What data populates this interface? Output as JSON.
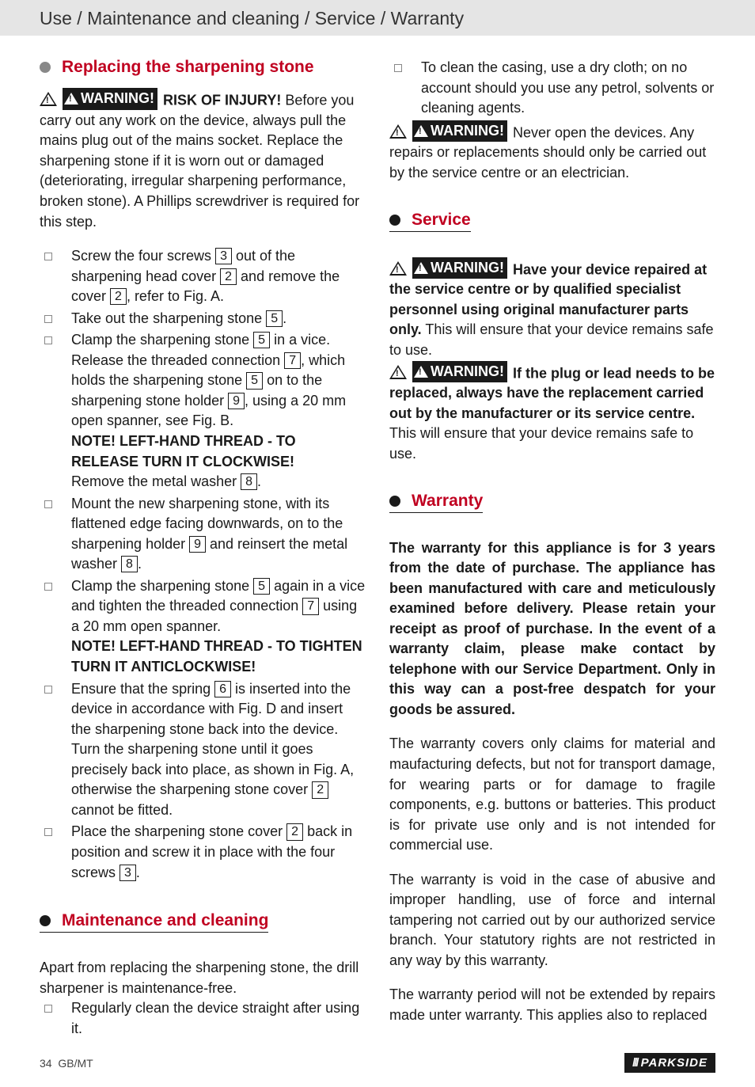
{
  "header": "Use / Maintenance and cleaning / Service / Warranty",
  "colors": {
    "accent": "#c00020",
    "text": "#1a1a1a",
    "header_bg": "#e5e5e5",
    "bullet_gray": "#888"
  },
  "left": {
    "replacing": {
      "title": "Replacing the sharpening stone",
      "intro_warning": "WARNING!",
      "intro_bold": " RISK OF INJURY!",
      "intro_rest": " Before you carry out any work on the device, always pull the mains plug out of the mains socket. Replace the sharpening stone if it is worn out or damaged (deteriorating, irregular sharpening performance, broken stone). A Phillips screwdriver is required for this step.",
      "steps": {
        "s1a": "Screw the four screws ",
        "s1_ref1": "3",
        "s1b": " out of the sharpening head cover ",
        "s1_ref2": "2",
        "s1c": " and remove the cover ",
        "s1_ref3": "2",
        "s1d": ", refer to Fig. A.",
        "s2a": "Take out the sharpening stone ",
        "s2_ref1": "5",
        "s2b": ".",
        "s3a": "Clamp the sharpening stone ",
        "s3_ref1": "5",
        "s3b": " in a vice. Release the threaded connection ",
        "s3_ref2": "7",
        "s3c": ", which holds the sharpening stone ",
        "s3_ref3": "5",
        "s3d": " on to the sharpening stone holder ",
        "s3_ref4": "9",
        "s3e": ", using a 20 mm open spanner, see Fig. B.",
        "note1": "NOTE! LEFT-HAND THREAD - TO RELEASE TURN IT CLOCKWISE!",
        "s3f": "Remove the metal washer ",
        "s3_ref5": "8",
        "s3g": ".",
        "s4a": "Mount the new sharpening stone, with its flattened edge facing downwards, on to the sharpening holder ",
        "s4_ref1": "9",
        "s4b": " and reinsert the metal washer ",
        "s4_ref2": "8",
        "s4c": ".",
        "s5a": "Clamp the sharpening stone ",
        "s5_ref1": "5",
        "s5b": " again in a vice and tighten the threaded connection ",
        "s5_ref2": "7",
        "s5c": " using a 20 mm open spanner.",
        "note2": "NOTE! LEFT-HAND THREAD - TO TIGHTEN TURN IT ANTICLOCKWISE!",
        "s6a": "Ensure that the spring ",
        "s6_ref1": "6",
        "s6b": " is inserted into the device in accordance with Fig. D and insert the sharpening stone back into the device. Turn the sharpening stone until it goes precisely back into place, as shown in Fig. A, otherwise the sharpening stone cover ",
        "s6_ref2": "2",
        "s6c": " cannot be fitted.",
        "s7a": "Place the sharpening stone cover ",
        "s7_ref1": "2",
        "s7b": " back in position and screw it in place with the four screws ",
        "s7_ref2": "3",
        "s7c": "."
      }
    },
    "maintenance": {
      "title": "Maintenance and cleaning",
      "intro": "Apart from replacing the sharpening stone, the drill sharpener is maintenance-free.",
      "item1": "Regularly clean the device straight after using it."
    }
  },
  "right": {
    "cont": {
      "item1": "To clean the casing, use a dry cloth; on no account should you use any petrol, solvents or cleaning agents.",
      "warn_label": "WARNING!",
      "warn_text": " Never open the devices. Any repairs or replacements should only be carried out by the service centre or an electrician."
    },
    "service": {
      "title": "Service",
      "w1_label": "WARNING!",
      "w1_bold": " Have your device repaired at the service centre or by qualified specialist personnel using original manufacturer parts only.",
      "w1_rest": " This will ensure that your device remains safe to use.",
      "w2_label": "WARNING!",
      "w2_bold": " If the plug or lead needs to be replaced, always have the replacement carried out by the manufacturer or its service centre.",
      "w2_rest": " This will ensure that your device remains safe to use."
    },
    "warranty": {
      "title": "Warranty",
      "p1": "The warranty for this appliance is for 3 years from the date of purchase. The appliance has been manufactured with care and meticulously examined before delivery. Please retain your receipt as proof of purchase. In the event of a warranty claim, please make contact by telephone with our Service Department. Only in this way can a post-free despatch for your goods be assured.",
      "p2": "The warranty covers only claims for material and maufacturing defects, but not for transport damage, for wearing parts or for damage to fragile components, e.g. buttons or batteries. This product is for private use only and is not intended for commercial use.",
      "p3": "The warranty is void in the case of abusive and improper handling, use of force and internal tampering not carried out by our authorized service branch. Your statutory rights are not restricted in any way by this warranty.",
      "p4": "The warranty period will not be extended by repairs made unter warranty. This applies also to replaced"
    }
  },
  "footer": {
    "page": "34",
    "region": "GB/MT",
    "brand": "PARKSIDE"
  }
}
